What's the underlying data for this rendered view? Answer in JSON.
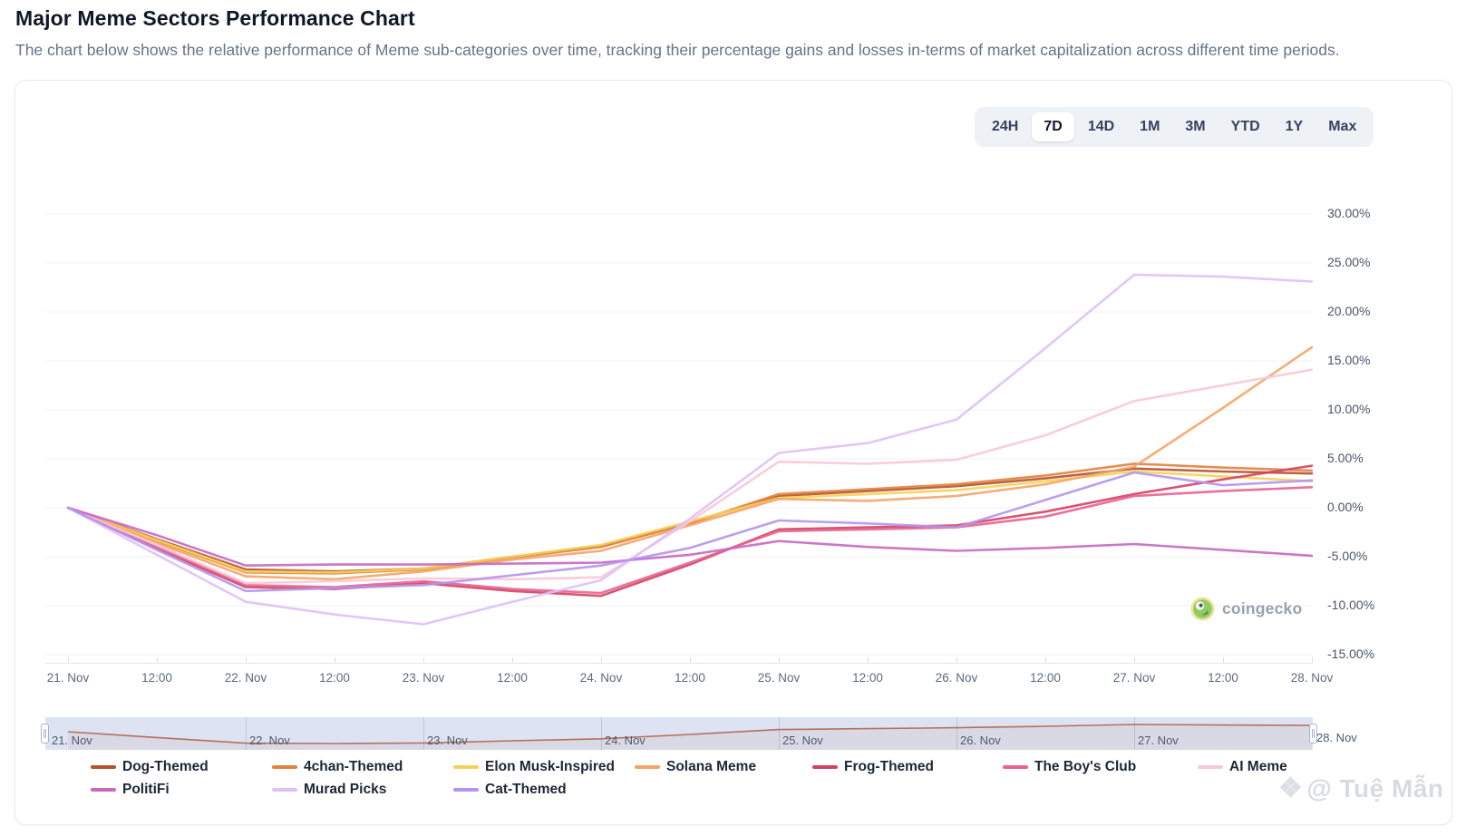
{
  "header": {
    "title": "Major Meme Sectors Performance Chart",
    "subtitle": "The chart below shows the relative performance of Meme sub-categories over time, tracking their percentage gains and losses in-terms of market capitalization across different time periods."
  },
  "time_range": {
    "options": [
      "24H",
      "7D",
      "14D",
      "1M",
      "3M",
      "YTD",
      "1Y",
      "Max"
    ],
    "active": "7D"
  },
  "chart_data": {
    "type": "line",
    "unit": "%",
    "title": "Major Meme Sectors Performance Chart",
    "legend_position": "bottom",
    "grid": "horizontal",
    "ylim": [
      -15,
      30
    ],
    "y_ticks": [
      {
        "label": "30.00%",
        "value": 30
      },
      {
        "label": "25.00%",
        "value": 25
      },
      {
        "label": "20.00%",
        "value": 20
      },
      {
        "label": "15.00%",
        "value": 15
      },
      {
        "label": "10.00%",
        "value": 10
      },
      {
        "label": "5.00%",
        "value": 5
      },
      {
        "label": "0.00%",
        "value": 0
      },
      {
        "label": "-5.00%",
        "value": -5
      },
      {
        "label": "-10.00%",
        "value": -10
      },
      {
        "label": "-15.00%",
        "value": -15
      }
    ],
    "x_labels": [
      "21. Nov",
      "12:00",
      "22. Nov",
      "12:00",
      "23. Nov",
      "12:00",
      "24. Nov",
      "12:00",
      "25. Nov",
      "12:00",
      "26. Nov",
      "12:00",
      "27. Nov",
      "12:00",
      "28. Nov"
    ],
    "series": [
      {
        "name": "Dog-Themed",
        "color": "#b3532f",
        "values": [
          0,
          -3.2,
          -6.3,
          -6.5,
          -6.2,
          -5.0,
          -3.9,
          -1.5,
          1.2,
          1.7,
          2.2,
          3.0,
          4.0,
          3.7,
          3.5
        ]
      },
      {
        "name": "4chan-Themed",
        "color": "#e2823e",
        "values": [
          0,
          -3.4,
          -6.6,
          -6.7,
          -6.3,
          -5.1,
          -4.0,
          -1.6,
          1.4,
          1.9,
          2.4,
          3.3,
          4.5,
          4.1,
          3.8
        ]
      },
      {
        "name": "Elon Musk-Inspired",
        "color": "#f6d254",
        "values": [
          0,
          -3.3,
          -6.5,
          -6.6,
          -6.2,
          -5.0,
          -3.8,
          -1.4,
          1.0,
          1.4,
          1.8,
          2.7,
          3.7,
          3.2,
          2.7
        ]
      },
      {
        "name": "Solana Meme",
        "color": "#f3a469",
        "values": [
          0,
          -3.6,
          -7.0,
          -7.3,
          -6.5,
          -5.3,
          -4.4,
          -1.8,
          0.9,
          0.7,
          1.2,
          2.4,
          4.2,
          10.2,
          16.4
        ]
      },
      {
        "name": "Frog-Themed",
        "color": "#d34263",
        "values": [
          0,
          -4.2,
          -8.1,
          -8.3,
          -7.7,
          -8.5,
          -9.0,
          -5.8,
          -2.2,
          -2.0,
          -1.8,
          -0.4,
          1.4,
          2.9,
          4.3
        ]
      },
      {
        "name": "The Boy's Club",
        "color": "#e7628f",
        "values": [
          0,
          -4.0,
          -7.9,
          -8.1,
          -7.5,
          -8.3,
          -8.7,
          -5.6,
          -2.4,
          -2.2,
          -2.0,
          -0.9,
          1.2,
          1.7,
          2.1
        ]
      },
      {
        "name": "AI Meme",
        "color": "#f8c8d6",
        "values": [
          0,
          -3.8,
          -7.7,
          -7.5,
          -7.2,
          -7.3,
          -7.1,
          -1.4,
          4.7,
          4.5,
          4.9,
          7.4,
          10.9,
          12.5,
          14.1
        ]
      },
      {
        "name": "PolitiFi",
        "color": "#c768c2",
        "values": [
          0,
          -2.8,
          -5.9,
          -5.8,
          -5.8,
          -5.7,
          -5.6,
          -4.8,
          -3.4,
          -4.0,
          -4.4,
          -4.1,
          -3.7,
          -4.3,
          -4.9
        ]
      },
      {
        "name": "Murad Picks",
        "color": "#dec1f7",
        "values": [
          0,
          -4.8,
          -9.6,
          -10.9,
          -11.9,
          -9.6,
          -7.4,
          -1.1,
          5.6,
          6.6,
          9.0,
          16.3,
          23.8,
          23.6,
          23.1
        ]
      },
      {
        "name": "Cat-Themed",
        "color": "#b493f0",
        "values": [
          0,
          -4.3,
          -8.5,
          -8.2,
          -7.9,
          -6.9,
          -5.9,
          -4.1,
          -1.3,
          -1.6,
          -2.0,
          0.8,
          3.6,
          2.3,
          2.8
        ]
      }
    ]
  },
  "navigator": {
    "labels": [
      "21. Nov",
      "22. Nov",
      "23. Nov",
      "24. Nov",
      "25. Nov",
      "26. Nov",
      "27. Nov",
      "28. Nov"
    ],
    "line_color": "#b05c42",
    "values": [
      0,
      -3.2,
      -6.3,
      -6.5,
      -6.2,
      -5.0,
      -3.9,
      -1.5,
      1.2,
      1.7,
      2.2,
      3.0,
      4.0,
      3.7,
      3.5
    ]
  },
  "watermarks": {
    "coingecko": "coingecko",
    "author": "@ Tuệ Mẫn",
    "author_icon": "❖"
  }
}
